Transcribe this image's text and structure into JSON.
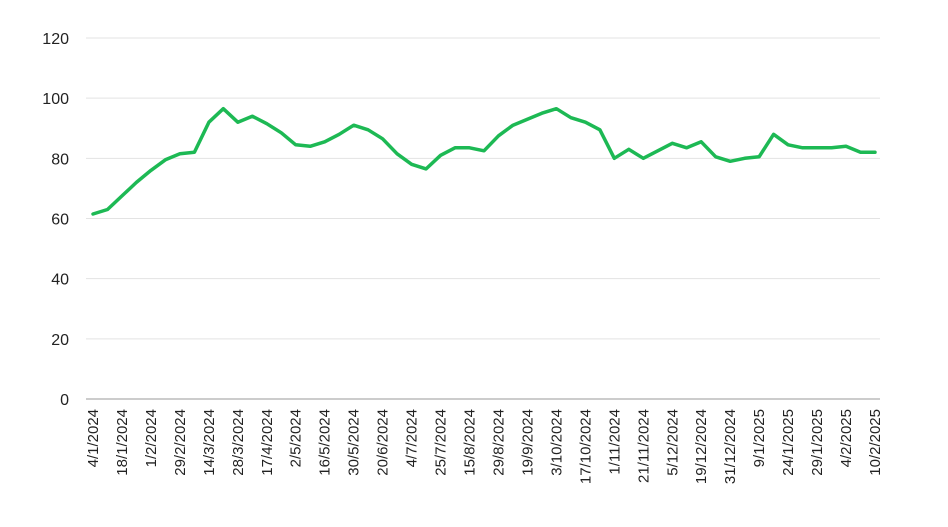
{
  "chart_data": {
    "type": "line",
    "title": "",
    "xlabel": "",
    "ylabel": "",
    "ylim": [
      0,
      120
    ],
    "yticks": [
      0,
      20,
      40,
      60,
      80,
      100,
      120
    ],
    "grid": "horizontal",
    "legend": "none",
    "colors": {
      "line": "#1db954",
      "grid": "#e3e3e3",
      "axis": "#999999",
      "text": "#222222"
    },
    "x_tick_labels": [
      "4/1/2024",
      "18/1/2024",
      "1/2/2024",
      "29/2/2024",
      "14/3/2024",
      "28/3/2024",
      "17/4/2024",
      "2/5/2024",
      "16/5/2024",
      "30/5/2024",
      "20/6/2024",
      "4/7/2024",
      "25/7/2024",
      "15/8/2024",
      "29/8/2024",
      "19/9/2024",
      "3/10/2024",
      "17/10/2024",
      "1/11/2024",
      "21/11/2024",
      "5/12/2024",
      "19/12/2024",
      "31/12/2024",
      "9/1/2025",
      "24/1/2025",
      "29/1/2025",
      "4/2/2025",
      "10/2/2025"
    ],
    "series": [
      {
        "values": [
          61.5,
          63,
          67.5,
          72,
          76,
          79.5,
          81.5,
          82,
          92,
          96.5,
          92,
          94,
          91.5,
          88.5,
          84.5,
          84,
          85.5,
          88,
          91,
          89.5,
          86.5,
          81.5,
          78,
          76.5,
          81,
          83.5,
          83.5,
          82.5,
          87.5,
          91,
          93,
          95,
          96.5,
          93.5,
          92,
          89.5,
          80,
          83,
          80,
          82.5,
          85,
          83.5,
          85.5,
          80.5,
          79,
          80,
          80.5,
          88,
          84.5,
          83.5,
          83.5,
          83.5,
          84,
          82,
          82
        ]
      }
    ]
  }
}
